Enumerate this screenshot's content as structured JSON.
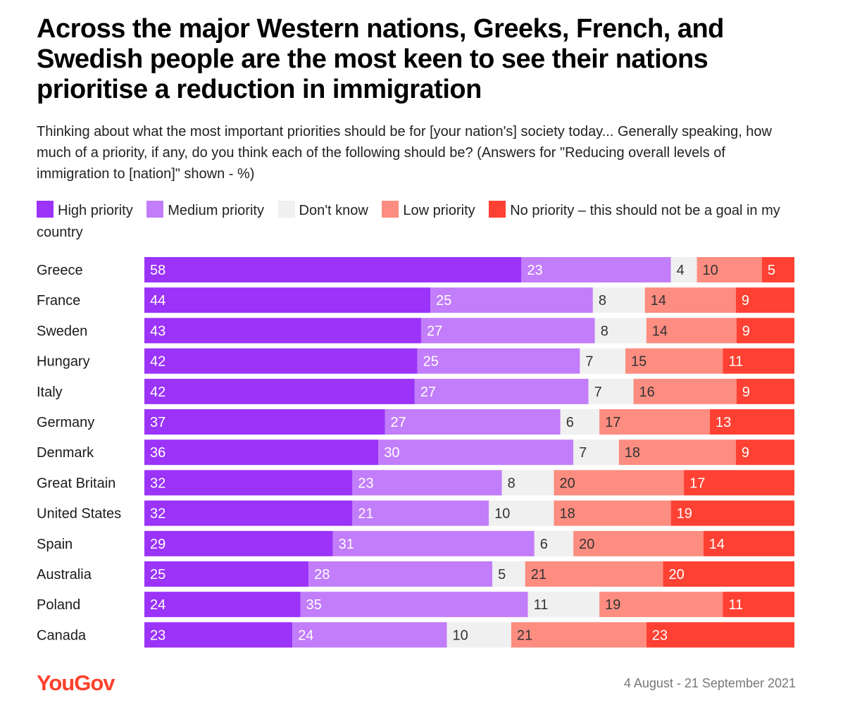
{
  "title": "Across the major Western nations, Greeks, French, and Swedish people are the most keen to see their nations prioritise a reduction in immigration",
  "subtitle": "Thinking about what the most important priorities should be for [your nation's] society today... Generally speaking, how much of a priority, if any, do you think each of the following should be? (Answers for \"Reducing overall levels of immigration to [nation]\" shown - %)",
  "colors": {
    "high": "#9b33f9",
    "medium": "#c27dfa",
    "dontknow": "#f0f0f0",
    "low": "#fc8d80",
    "none": "#fe4133"
  },
  "source_date": "4 August - 21 September 2021",
  "logo_text": "YouGov",
  "chart_data": {
    "type": "bar",
    "orientation": "horizontal-stacked",
    "title": "Across the major Western nations, Greeks, French, and Swedish people are the most keen to see their nations prioritise a reduction in immigration",
    "categories": [
      "Greece",
      "France",
      "Sweden",
      "Hungary",
      "Italy",
      "Germany",
      "Denmark",
      "Great Britain",
      "United States",
      "Spain",
      "Australia",
      "Poland",
      "Canada"
    ],
    "series": [
      {
        "key": "high",
        "name": "High priority",
        "values": [
          58,
          44,
          43,
          42,
          42,
          37,
          36,
          32,
          32,
          29,
          25,
          24,
          23
        ]
      },
      {
        "key": "medium",
        "name": "Medium priority",
        "values": [
          23,
          25,
          27,
          25,
          27,
          27,
          30,
          23,
          21,
          31,
          28,
          35,
          24
        ]
      },
      {
        "key": "dontknow",
        "name": "Don't know",
        "values": [
          4,
          8,
          8,
          7,
          7,
          6,
          7,
          8,
          10,
          6,
          5,
          11,
          10
        ]
      },
      {
        "key": "low",
        "name": "Low priority",
        "values": [
          10,
          14,
          14,
          15,
          16,
          17,
          18,
          20,
          18,
          20,
          21,
          19,
          21
        ]
      },
      {
        "key": "none",
        "name": "No priority – this should not be a goal in my country",
        "values": [
          5,
          9,
          9,
          11,
          9,
          13,
          9,
          17,
          19,
          14,
          20,
          11,
          23
        ]
      }
    ],
    "unit": "%",
    "legend_position": "top"
  }
}
